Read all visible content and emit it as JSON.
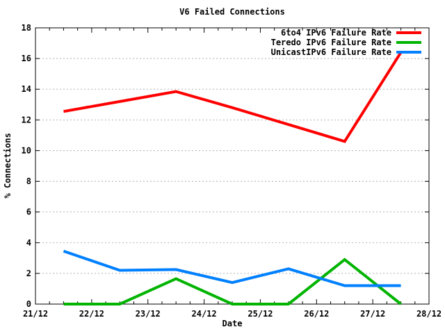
{
  "chart_data": {
    "type": "line",
    "title": "V6 Failed Connections",
    "xlabel": "Date",
    "ylabel": "% Connections",
    "xlim": [
      0,
      7
    ],
    "ylim": [
      0,
      18
    ],
    "x_unit": "days after 21/12",
    "x_tick_values": [
      0,
      1,
      2,
      3,
      4,
      5,
      6,
      7
    ],
    "x_tick_labels": [
      "21/12",
      "22/12",
      "23/12",
      "24/12",
      "25/12",
      "26/12",
      "27/12",
      "28/12"
    ],
    "x_minor_tick_step": 0.25,
    "y_tick_values": [
      0,
      2,
      4,
      6,
      8,
      10,
      12,
      14,
      16,
      18
    ],
    "y_tick_labels": [
      "0",
      "2",
      "4",
      "6",
      "8",
      "10",
      "12",
      "14",
      "16",
      "18"
    ],
    "y_tick_step": 2,
    "grid": "horizontal-dashed",
    "grid_color": "#b0b0b0",
    "axis_color": "#000000",
    "background_color": "#ffffff",
    "legend_position": "top-right-inside",
    "x": [
      0.5,
      1.5,
      2.5,
      3.5,
      4.5,
      5.5,
      6.5
    ],
    "series": [
      {
        "name": "6to4 IPv6 Failure Rate",
        "color": "#ff0000",
        "values": [
          12.55,
          13.2,
          13.85,
          12.8,
          11.7,
          10.6,
          16.4
        ]
      },
      {
        "name": "Teredo IPv6 Failure Rate",
        "color": "#00b400",
        "values": [
          0,
          0,
          1.65,
          0,
          0,
          2.9,
          0
        ]
      },
      {
        "name": "UnicastIPv6 Failure Rate",
        "color": "#0080ff",
        "values": [
          3.45,
          2.2,
          2.25,
          1.4,
          2.3,
          1.2,
          1.2
        ]
      }
    ]
  }
}
